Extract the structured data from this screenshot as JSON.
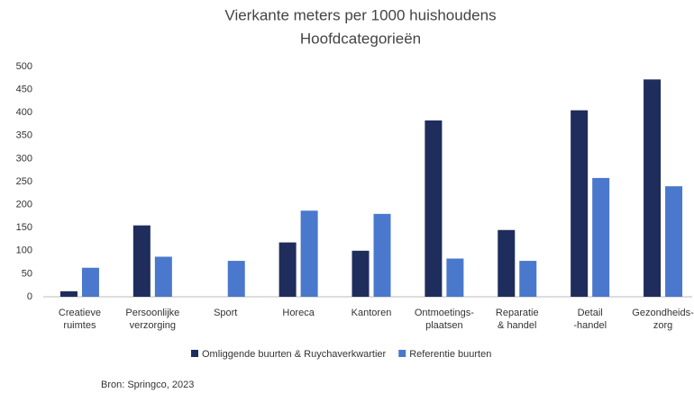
{
  "chart_data": {
    "type": "bar",
    "title": "Vierkante meters per 1000 huishoudens",
    "subtitle": "Hoofdcategorieën",
    "categories": [
      "Creatieve\nruimtes",
      "Persoonlijke\nverzorging",
      "Sport",
      "Horeca",
      "Kantoren",
      "Ontmoetings-\nplaatsen",
      "Reparatie\n& handel",
      "Detail\n-handel",
      "Gezondheids-\nzorg"
    ],
    "series": [
      {
        "name": "Omliggende buurten & Ruychaverkwartier",
        "color": "#1f2d5c",
        "values": [
          12,
          155,
          null,
          118,
          100,
          383,
          145,
          405,
          472
        ]
      },
      {
        "name": "Referentie buurten",
        "color": "#4a78cc",
        "values": [
          63,
          87,
          78,
          187,
          180,
          83,
          78,
          258,
          240
        ]
      }
    ],
    "ylim": [
      0,
      500
    ],
    "yticks": [
      0,
      50,
      100,
      150,
      200,
      250,
      300,
      350,
      400,
      450,
      500
    ],
    "legend": "bottom",
    "source": "Bron: Springco, 2023"
  }
}
